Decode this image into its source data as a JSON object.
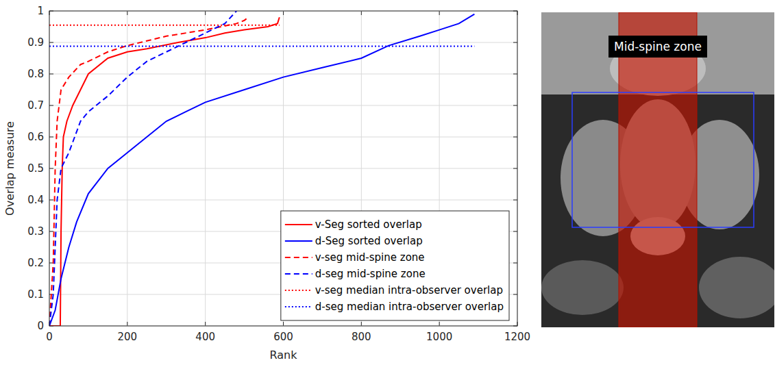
{
  "chart_data": {
    "type": "line",
    "x_label": "Rank",
    "y_label": "Overlap measure",
    "xlim": [
      0,
      1200
    ],
    "ylim": [
      0,
      1
    ],
    "xticks": [
      0,
      200,
      400,
      600,
      800,
      1000,
      1200
    ],
    "yticks": [
      0,
      0.1,
      0.2,
      0.3,
      0.4,
      0.5,
      0.6,
      0.7,
      0.8,
      0.9,
      1
    ],
    "grid": true,
    "legend": "lower right",
    "series": [
      {
        "name": "v-Seg sorted overlap",
        "color": "#ff0000",
        "line_style": "solid",
        "x": [
          0,
          28,
          30,
          33,
          36,
          45,
          60,
          80,
          100,
          150,
          200,
          250,
          330,
          400,
          450,
          500,
          560,
          585,
          590
        ],
        "values": [
          0,
          0,
          0.3,
          0.5,
          0.6,
          0.65,
          0.7,
          0.75,
          0.8,
          0.85,
          0.87,
          0.88,
          0.9,
          0.915,
          0.93,
          0.94,
          0.95,
          0.96,
          0.98
        ]
      },
      {
        "name": "d-Seg sorted overlap",
        "color": "#0000ff",
        "line_style": "solid",
        "x": [
          0,
          15,
          30,
          50,
          70,
          100,
          150,
          200,
          250,
          300,
          350,
          400,
          500,
          600,
          700,
          800,
          870,
          950,
          1000,
          1050,
          1090
        ],
        "values": [
          0,
          0.05,
          0.15,
          0.25,
          0.33,
          0.42,
          0.5,
          0.55,
          0.6,
          0.65,
          0.68,
          0.71,
          0.75,
          0.79,
          0.82,
          0.85,
          0.89,
          0.92,
          0.94,
          0.96,
          0.99
        ]
      },
      {
        "name": "v-seg mid-spine zone",
        "color": "#ff0000",
        "line_style": "dashed",
        "x": [
          0,
          10,
          15,
          20,
          30,
          50,
          80,
          100,
          150,
          200,
          300,
          400,
          480,
          500,
          510
        ],
        "values": [
          0,
          0.2,
          0.5,
          0.65,
          0.75,
          0.79,
          0.83,
          0.84,
          0.87,
          0.89,
          0.92,
          0.94,
          0.96,
          0.97,
          0.98
        ]
      },
      {
        "name": "d-seg mid-spine zone",
        "color": "#0000ff",
        "line_style": "dashed",
        "x": [
          0,
          10,
          20,
          30,
          50,
          80,
          100,
          150,
          200,
          250,
          300,
          350,
          400,
          450,
          480
        ],
        "values": [
          0,
          0.1,
          0.4,
          0.5,
          0.55,
          0.65,
          0.68,
          0.73,
          0.79,
          0.84,
          0.87,
          0.9,
          0.93,
          0.96,
          1.0
        ]
      },
      {
        "name": "v-seg median intra-observer overlap",
        "color": "#ff0000",
        "line_style": "dotted",
        "x": [
          0,
          590
        ],
        "values": [
          0.955,
          0.955
        ]
      },
      {
        "name": "d-seg median intra-observer overlap",
        "color": "#0000ff",
        "line_style": "dotted",
        "x": [
          0,
          1090
        ],
        "values": [
          0.888,
          0.888
        ]
      }
    ]
  },
  "image": {
    "label": "Mid-spine zone"
  }
}
